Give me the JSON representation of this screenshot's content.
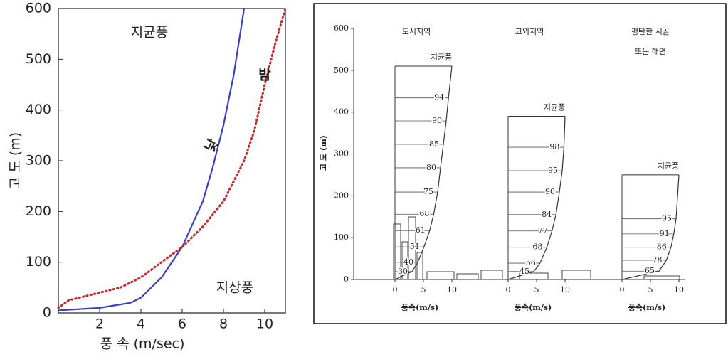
{
  "chart_data": [
    {
      "type": "line",
      "xlabel": "풍 속 (m/sec)",
      "ylabel": "고 도 (m)",
      "xlim": [
        0,
        11
      ],
      "ylim": [
        0,
        600
      ],
      "xticks": [
        2,
        4,
        6,
        8,
        10
      ],
      "yticks": [
        0,
        100,
        200,
        300,
        400,
        500,
        600
      ],
      "annotations": [
        "지균풍",
        "지상풍"
      ],
      "series": [
        {
          "name": "낮",
          "color": "#3a3fc4",
          "style": "solid",
          "x": [
            0,
            2,
            3.5,
            4,
            5,
            6,
            7,
            7.5,
            8,
            8.5,
            9
          ],
          "values": [
            5,
            10,
            20,
            30,
            70,
            130,
            220,
            290,
            370,
            470,
            600
          ]
        },
        {
          "name": "밤",
          "color": "#c8282c",
          "style": "dotted",
          "x": [
            0,
            0.5,
            1,
            2,
            3,
            4,
            5,
            6,
            7,
            8,
            9,
            9.5,
            10,
            10.5,
            11
          ],
          "values": [
            10,
            25,
            30,
            40,
            50,
            70,
            100,
            130,
            170,
            220,
            300,
            360,
            450,
            530,
            600
          ]
        }
      ]
    },
    {
      "type": "profile",
      "ylabel": "고 도 (m)",
      "ylim": [
        0,
        600
      ],
      "yticks": [
        0,
        100,
        200,
        300,
        400,
        500,
        600
      ],
      "xlim": [
        0,
        10
      ],
      "panels": [
        {
          "title": [
            "도시지역"
          ],
          "top_label": "지균풍",
          "top": 510,
          "xticks": [
            0,
            5,
            10
          ],
          "xlabel": "풍속(m/s)",
          "heights": [
            434,
            379,
            323,
            267,
            209,
            156,
            117,
            78,
            41,
            19
          ],
          "values": [
            94,
            90,
            85,
            80,
            75,
            68,
            61,
            51,
            40,
            30
          ]
        },
        {
          "title": [
            "교외지역"
          ],
          "top_label": "지균풍",
          "top": 390,
          "xticks": [
            0,
            5,
            10
          ],
          "xlabel": "풍속(m/s)",
          "heights": [
            316,
            260,
            209,
            155,
            116,
            77,
            39,
            19
          ],
          "values": [
            98,
            95,
            90,
            84,
            77,
            68,
            56,
            45
          ]
        },
        {
          "title": [
            "평탄한 시골",
            "또는 해면"
          ],
          "top_label": "지균풍",
          "top": 250,
          "xticks": [
            0,
            5,
            10
          ],
          "xlabel": "풍속(m/s)",
          "heights": [
            145,
            109,
            77,
            46,
            20
          ],
          "values": [
            95,
            91,
            86,
            78,
            65
          ]
        }
      ]
    }
  ]
}
